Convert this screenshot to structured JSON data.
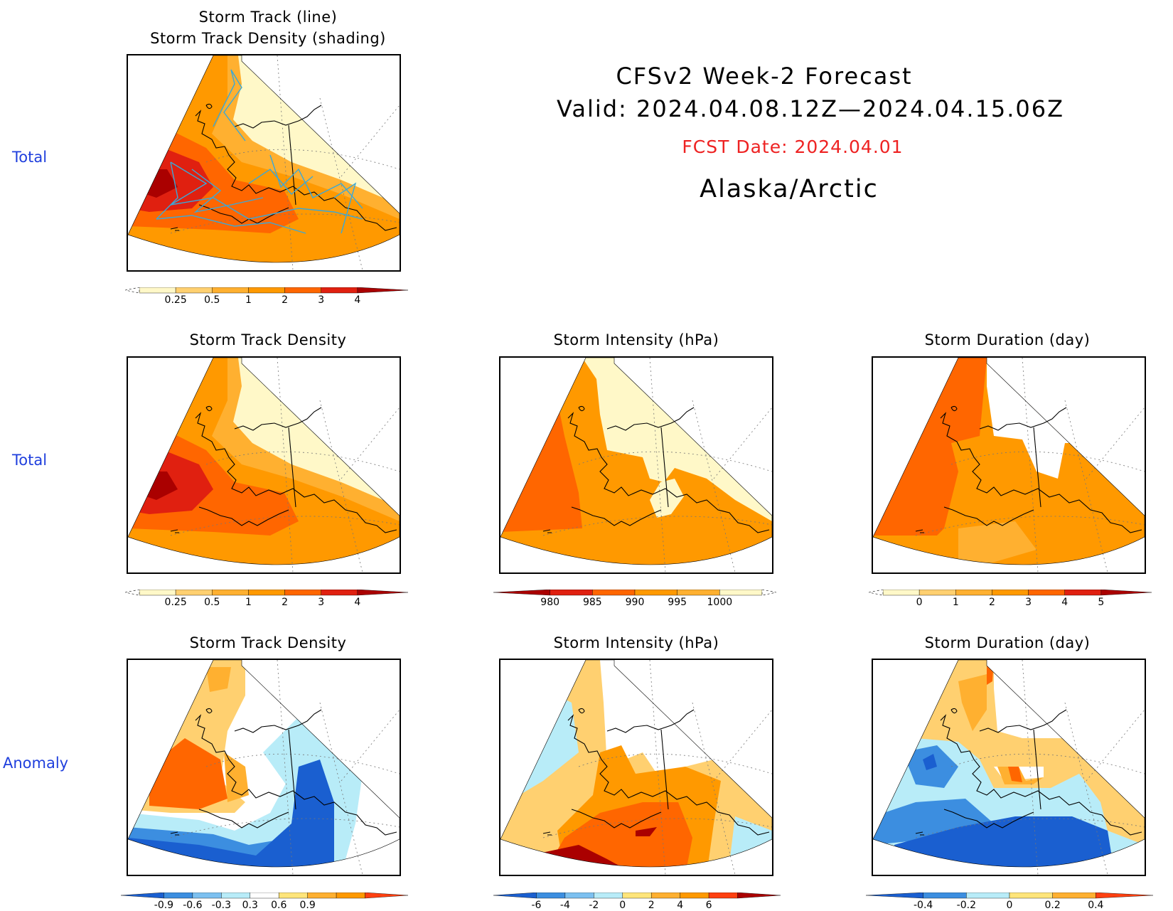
{
  "header": {
    "line1": "CFSv2 Week-2 Forecast",
    "line2": "Valid: 2024.04.08.12Z—2024.04.15.06Z",
    "fcst": "FCST Date: 2024.04.01",
    "region": "Alaska/Arctic"
  },
  "rows": [
    "Total",
    "Total",
    "Anomaly"
  ],
  "panels": {
    "top": {
      "title1": "Storm Track (line)",
      "title2": "Storm Track Density (shading)"
    },
    "density": "Storm Track Density",
    "intensity": "Storm Intensity (hPa)",
    "duration": "Storm Duration (day)",
    "density_anom": "Storm Track Density",
    "intensity_anom": "Storm Intensity (hPa)",
    "duration_anom": "Storm Duration (day)"
  },
  "colorbars": {
    "density": {
      "ticks": [
        "0.25",
        "0.5",
        "1",
        "2",
        "3",
        "4"
      ],
      "colors": [
        "#fff8c8",
        "#ffd070",
        "#ffb030",
        "#ff9900",
        "#ff6600",
        "#e02010",
        "#aa0000"
      ]
    },
    "intensity": {
      "ticks": [
        "980",
        "985",
        "990",
        "995",
        "1000"
      ],
      "colors": [
        "#aa0000",
        "#e02010",
        "#ff6600",
        "#ff9900",
        "#ffb030",
        "#fff8c8"
      ]
    },
    "duration": {
      "ticks": [
        "0",
        "1",
        "2",
        "3",
        "4",
        "5"
      ],
      "colors": [
        "#fff8c8",
        "#ffd070",
        "#ffb030",
        "#ff9900",
        "#ff6600",
        "#e02010",
        "#aa0000"
      ]
    },
    "density_anom": {
      "ticks": [
        "-0.9",
        "-0.6",
        "-0.3",
        "0.3",
        "0.6",
        "0.9"
      ],
      "colors": [
        "#1a5fd0",
        "#3c8ee0",
        "#7cc0f0",
        "#b8ecf8",
        "#ffffff",
        "#ffe57a",
        "#ffb030",
        "#ff9900",
        "#ff4010"
      ]
    },
    "intensity_anom": {
      "ticks": [
        "-6",
        "-4",
        "-2",
        "0",
        "2",
        "4",
        "6"
      ],
      "colors": [
        "#1a5fd0",
        "#3c8ee0",
        "#7cc0f0",
        "#b8ecf8",
        "#ffe57a",
        "#ffb030",
        "#ff9900",
        "#ff4010",
        "#aa0000"
      ]
    },
    "duration_anom": {
      "ticks": [
        "-0.4",
        "-0.2",
        "0",
        "0.2",
        "0.4"
      ],
      "colors": [
        "#1a5fd0",
        "#3c8ee0",
        "#b8ecf8",
        "#ffe57a",
        "#ffb030",
        "#ff4010"
      ]
    }
  },
  "palette": {
    "c1": "#fff8c8",
    "c2": "#ffd070",
    "c3": "#ffb030",
    "c4": "#ff9900",
    "c5": "#ff6600",
    "c6": "#e02010",
    "c7": "#aa0000",
    "b1": "#1a5fd0",
    "b2": "#3c8ee0",
    "b3": "#b8ecf8",
    "track": "#3aa8d8"
  }
}
